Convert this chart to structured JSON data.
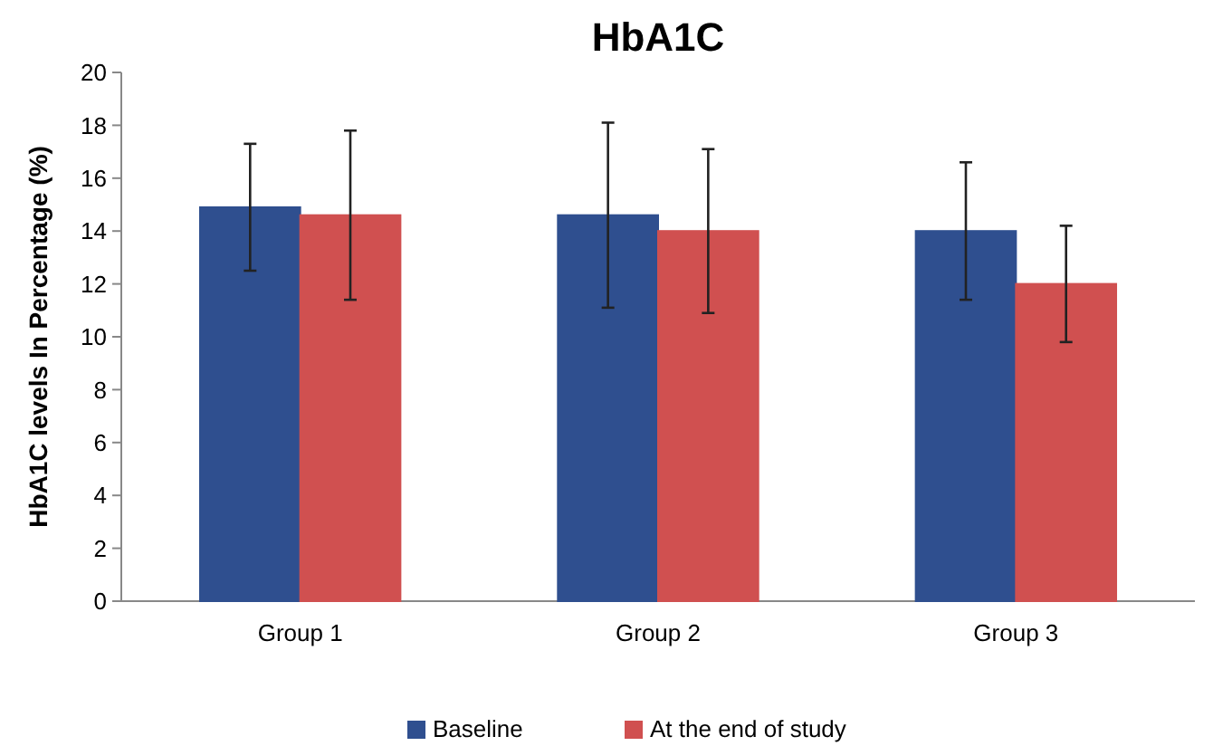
{
  "chart_data": {
    "type": "bar",
    "title": "HbA1C",
    "ylabel": "HbA1C levels In Percentage (%)",
    "categories": [
      "Group 1",
      "Group 2",
      "Group 3"
    ],
    "series": [
      {
        "name": "Baseline",
        "color": "#2f4f8f",
        "values": [
          14.9,
          14.6,
          14.0
        ],
        "errors": [
          2.4,
          3.5,
          2.6
        ]
      },
      {
        "name": "At the end of study",
        "color": "#d05050",
        "values": [
          14.6,
          14.0,
          12.0
        ],
        "errors": [
          3.2,
          3.1,
          2.2
        ]
      }
    ],
    "ylim": [
      0,
      20
    ],
    "yticks": [
      0,
      2,
      4,
      6,
      8,
      10,
      12,
      14,
      16,
      18,
      20
    ],
    "grid": false,
    "legend": "bottom"
  }
}
